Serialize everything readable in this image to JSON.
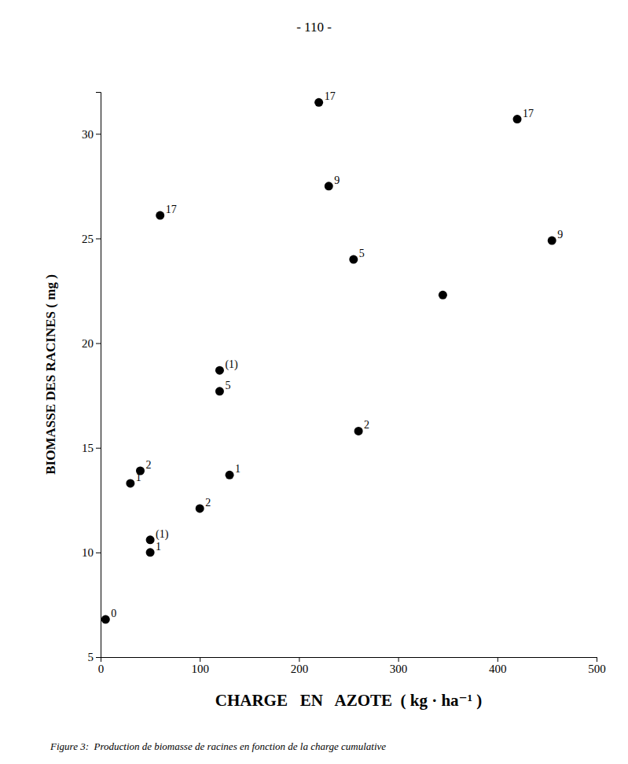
{
  "chart_data": {
    "type": "scatter",
    "title": "- 110 -",
    "caption": "Figure 3:  Production de biomasse de racines en fonction de la charge cumulative",
    "x_label": "CHARGE   EN   AZOTE  ( kg · ha⁻¹ )",
    "y_label": "BIOMASSE DES RACINES ( mg )",
    "x": [
      5,
      30,
      50,
      50,
      40,
      100,
      120,
      120,
      130,
      60,
      220,
      230,
      255,
      260,
      345,
      420,
      455
    ],
    "values": [
      6.8,
      13.3,
      10.6,
      10.0,
      13.9,
      12.1,
      18.7,
      17.7,
      13.7,
      26.1,
      31.5,
      27.5,
      24.0,
      15.8,
      22.3,
      30.7,
      24.9
    ],
    "labels": [
      "0",
      "1",
      "(1)",
      "1",
      "2",
      "2",
      "(1)",
      "5",
      "1",
      "17",
      "17",
      "9",
      "5",
      "2",
      null,
      "17",
      "9"
    ],
    "color": "#000000",
    "xlim": [
      0,
      500
    ],
    "ylim": [
      5,
      32
    ],
    "xticks": [
      0,
      100,
      200,
      300,
      400,
      500
    ],
    "yticks": [
      5,
      10,
      15,
      20,
      25,
      30
    ],
    "grid": false
  }
}
